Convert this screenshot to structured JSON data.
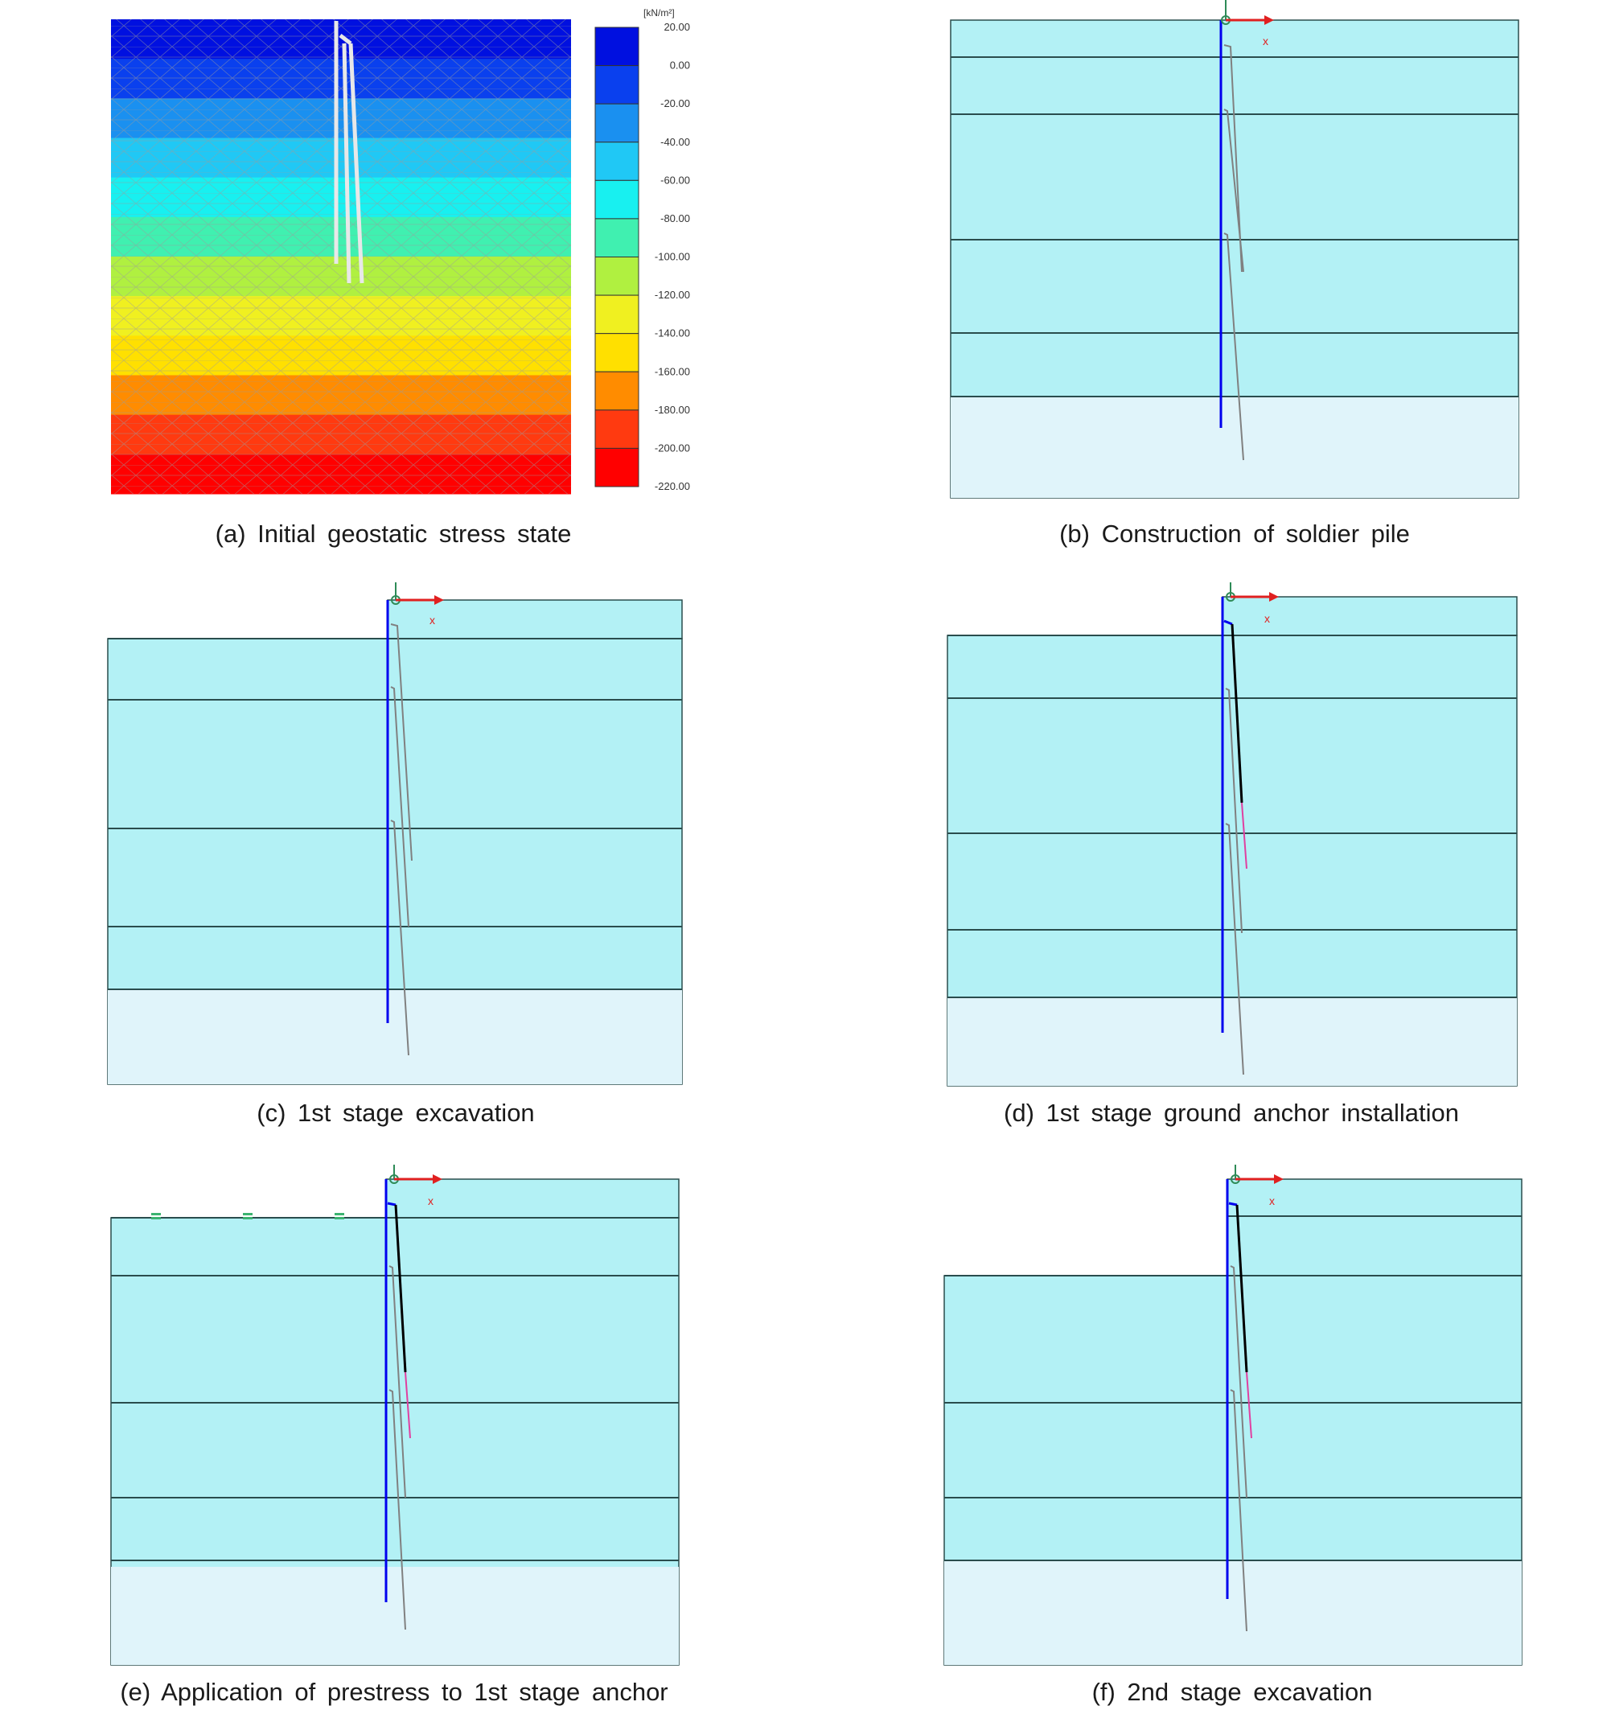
{
  "colors": {
    "soil": "#b3f1f5",
    "soil_dark_line": "#2a4d4d",
    "soil_bottom": "#e0f4fa",
    "pile": "#0000ee",
    "anchor": "#808080",
    "anchor_free": "#000000",
    "anchor_bond": "#e040a0",
    "axis": "#e02020",
    "origin": "#2e8b57"
  },
  "axis_label": "x",
  "panels": [
    {
      "id": "a",
      "caption": "(a)  Initial  geostatic  stress  state"
    },
    {
      "id": "b",
      "caption": "(b)  Construction  of  soldier  pile"
    },
    {
      "id": "c",
      "caption": "(c)  1st  stage  excavation"
    },
    {
      "id": "d",
      "caption": "(d)  1st  stage  ground  anchor  installation"
    },
    {
      "id": "e",
      "caption": "(e)  Application  of  prestress  to  1st   stage  anchor"
    },
    {
      "id": "f",
      "caption": "(f)  2nd  stage  excavation"
    }
  ],
  "legend": {
    "unit": "[kN/m²]",
    "ticks": [
      "20.00",
      "0.00",
      "-20.00",
      "-40.00",
      "-60.00",
      "-80.00",
      "-100.00",
      "-120.00",
      "-140.00",
      "-160.00",
      "-180.00",
      "-200.00",
      "-220.00"
    ],
    "colors": [
      "#0010e0",
      "#0a40ee",
      "#1a90f0",
      "#20c8f5",
      "#18f0f0",
      "#40f0b0",
      "#b0f040",
      "#f0f020",
      "#ffe000",
      "#ff8c00",
      "#ff3a10",
      "#ff0000"
    ]
  }
}
